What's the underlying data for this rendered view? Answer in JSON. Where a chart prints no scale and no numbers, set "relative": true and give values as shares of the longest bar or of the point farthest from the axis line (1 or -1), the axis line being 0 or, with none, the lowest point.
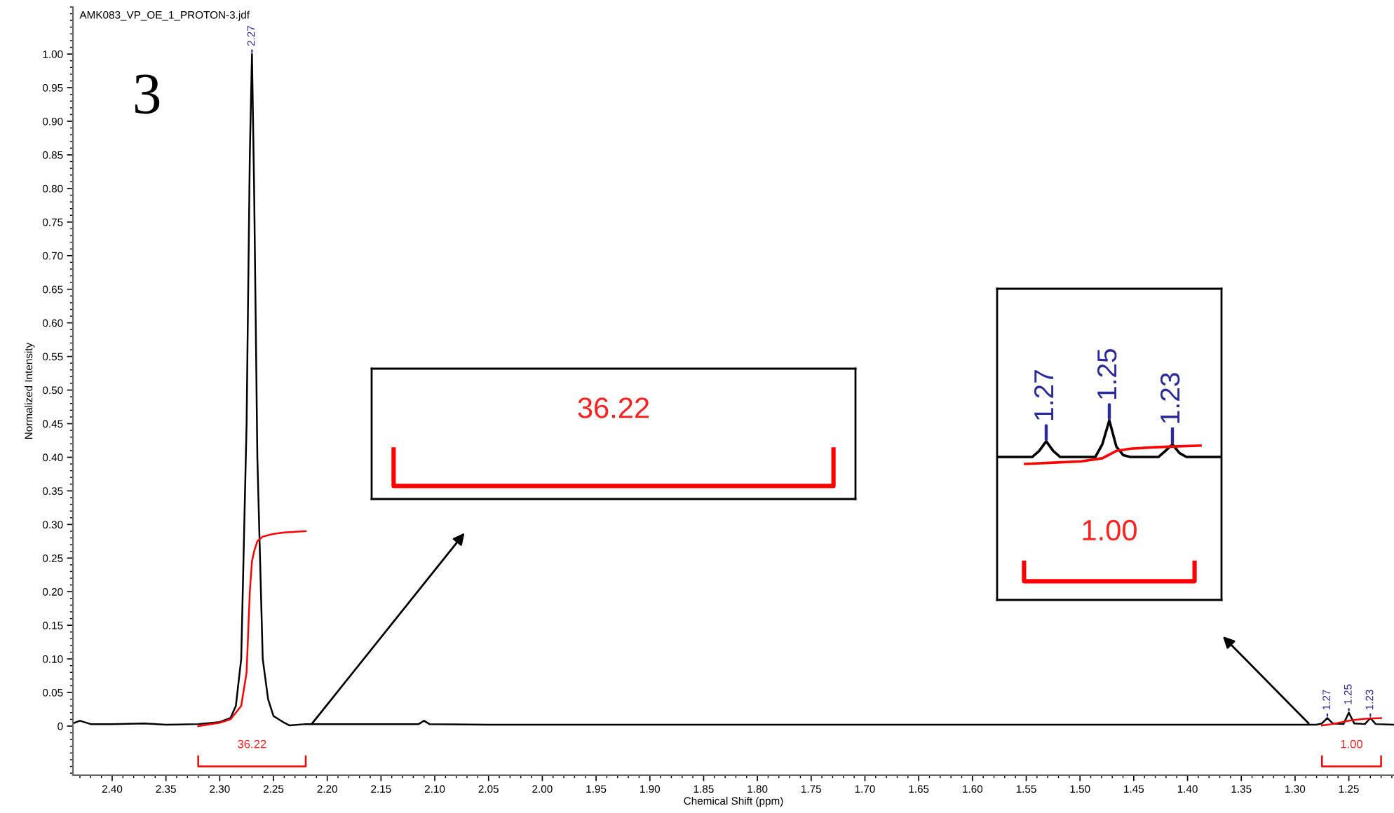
{
  "chart_data": [
    {
      "type": "line",
      "xlabel": "Chemical Shift (ppm)",
      "ylabel": "Normalized Intensity",
      "xlim": [
        2.4365,
        1.208
      ],
      "ylim": [
        -0.073,
        1.07
      ],
      "xticks": [
        {
          "value": 2.4,
          "label": "2.40"
        },
        {
          "value": 2.35,
          "label": "2.35"
        },
        {
          "value": 2.3,
          "label": "2.30"
        },
        {
          "value": 2.25,
          "label": "2.25"
        },
        {
          "value": 2.2,
          "label": "2.20"
        },
        {
          "value": 2.15,
          "label": "2.15"
        },
        {
          "value": 2.1,
          "label": "2.10"
        },
        {
          "value": 2.05,
          "label": "2.05"
        },
        {
          "value": 2.0,
          "label": "2.00"
        },
        {
          "value": 1.95,
          "label": "1.95"
        },
        {
          "value": 1.9,
          "label": "1.90"
        },
        {
          "value": 1.85,
          "label": "1.85"
        },
        {
          "value": 1.8,
          "label": "1.80"
        },
        {
          "value": 1.75,
          "label": "1.75"
        },
        {
          "value": 1.7,
          "label": "1.70"
        },
        {
          "value": 1.65,
          "label": "1.65"
        },
        {
          "value": 1.6,
          "label": "1.60"
        },
        {
          "value": 1.55,
          "label": "1.55"
        },
        {
          "value": 1.5,
          "label": "1.50"
        },
        {
          "value": 1.45,
          "label": "1.45"
        },
        {
          "value": 1.4,
          "label": "1.40"
        },
        {
          "value": 1.35,
          "label": "1.35"
        },
        {
          "value": 1.3,
          "label": "1.30"
        },
        {
          "value": 1.25,
          "label": "1.25"
        }
      ],
      "yticks": [
        0,
        0.05,
        {
          "value": 0.1,
          "label": "0.10"
        },
        0.15,
        {
          "value": 0.2,
          "label": "0.20"
        },
        0.25,
        {
          "value": 0.3,
          "label": "0.30"
        },
        0.35,
        {
          "value": 0.4,
          "label": "0.40"
        },
        0.45,
        {
          "value": 0.5,
          "label": "0.50"
        },
        0.55,
        {
          "value": 0.6,
          "label": "0.60"
        },
        0.65,
        {
          "value": 0.7,
          "label": "0.70"
        },
        0.75,
        {
          "value": 0.8,
          "label": "0.80"
        },
        0.85,
        {
          "value": 0.9,
          "label": "0.90"
        },
        0.95,
        {
          "value": 1.0,
          "label": "1.00"
        }
      ],
      "grid": false,
      "legend": false,
      "marker": "none",
      "line_style": "solid",
      "series": [
        {
          "color": "#000000",
          "x": [
            2.4365,
            2.43,
            2.42,
            2.4,
            2.37,
            2.35,
            2.32,
            2.3,
            2.29,
            2.285,
            2.28,
            2.275,
            2.272,
            2.27,
            2.268,
            2.265,
            2.26,
            2.255,
            2.25,
            2.24,
            2.235,
            2.22,
            2.2,
            2.15,
            2.115,
            2.11,
            2.105,
            2.05,
            2.0,
            1.9,
            1.8,
            1.7,
            1.6,
            1.5,
            1.4,
            1.3,
            1.28,
            1.275,
            1.27,
            1.265,
            1.255,
            1.25,
            1.245,
            1.235,
            1.23,
            1.225,
            1.208
          ],
          "values": [
            0.004,
            0.008,
            0.003,
            0.003,
            0.004,
            0.002,
            0.003,
            0.006,
            0.012,
            0.03,
            0.1,
            0.45,
            0.85,
            1.0,
            0.8,
            0.4,
            0.1,
            0.04,
            0.015,
            0.005,
            0.001,
            0.003,
            0.003,
            0.003,
            0.003,
            0.008,
            0.003,
            0.002,
            0.002,
            0.002,
            0.002,
            0.002,
            0.002,
            0.002,
            0.002,
            0.002,
            0.002,
            0.004,
            0.012,
            0.004,
            0.003,
            0.02,
            0.004,
            0.003,
            0.012,
            0.003,
            0.002
          ]
        },
        {
          "color": "#ff0000",
          "x": [
            2.32,
            2.3,
            2.29,
            2.28,
            2.275,
            2.272,
            2.27,
            2.268,
            2.265,
            2.26,
            2.25,
            2.24,
            2.22
          ],
          "values": [
            0.0,
            0.005,
            0.01,
            0.03,
            0.08,
            0.2,
            0.245,
            0.26,
            0.275,
            0.282,
            0.286,
            0.288,
            0.29
          ]
        },
        {
          "color": "#ff0000",
          "x": [
            1.275,
            1.265,
            1.25,
            1.235,
            1.22
          ],
          "values": [
            0.001,
            0.003,
            0.008,
            0.011,
            0.012
          ]
        },
        {
          "color": "#ff0000",
          "x": [
            2.32,
            2.32,
            2.22,
            2.22
          ],
          "values": [
            -0.045,
            -0.06,
            -0.06,
            -0.045
          ]
        },
        {
          "color": "#ff0000",
          "x": [
            1.275,
            1.275,
            1.22,
            1.22
          ],
          "values": [
            -0.045,
            -0.06,
            -0.06,
            -0.045
          ]
        }
      ],
      "annotations": [
        "AMK083_VP_OE_1_PROTON-3.jdf",
        "3",
        {
          "text": "2.27",
          "x": 2.27,
          "y": 1.0
        },
        {
          "text": "1.27",
          "x": 1.27,
          "y": 0.012
        },
        {
          "text": "1.25",
          "x": 1.25,
          "y": 0.02
        },
        {
          "text": "1.23",
          "x": 1.23,
          "y": 0.012
        },
        "36.22",
        "1.00"
      ]
    },
    {
      "type": "other",
      "annotations": [
        "36.22"
      ]
    },
    {
      "type": "line",
      "relative": true,
      "marker": "none",
      "line_style": "solid",
      "categories": [
        null,
        null,
        null,
        null,
        null,
        null,
        null,
        null,
        null,
        null,
        null,
        null,
        null,
        null,
        null,
        null,
        null,
        null,
        null,
        null,
        null,
        null,
        null,
        null,
        null,
        null,
        null,
        null,
        null,
        null,
        null,
        null,
        null
      ],
      "series": [
        {
          "color": "#000000",
          "values": [
            0.16,
            0.16,
            0.16,
            0.16,
            0.16,
            0.16,
            0.3,
            0.52,
            0.3,
            0.16,
            0.16,
            0.16,
            0.16,
            0.16,
            0.16,
            0.45,
            1.0,
            0.4,
            0.2,
            0.16,
            0.16,
            0.16,
            0.16,
            0.16,
            0.3,
            0.45,
            0.25,
            0.16,
            0.16,
            0.16,
            0.16,
            0.16,
            0.16
          ]
        },
        {
          "color": "#ff0000",
          "values": [
            null,
            null,
            null,
            null,
            0.0,
            null,
            null,
            null,
            0.03,
            null,
            null,
            null,
            0.06,
            null,
            null,
            0.13,
            null,
            0.3,
            null,
            0.35,
            null,
            null,
            0.38,
            null,
            null,
            0.4,
            null,
            null,
            null,
            0.42,
            null,
            null,
            null
          ]
        }
      ],
      "annotations": [
        "1.27",
        "1.25",
        "1.23",
        "1.00"
      ]
    }
  ]
}
